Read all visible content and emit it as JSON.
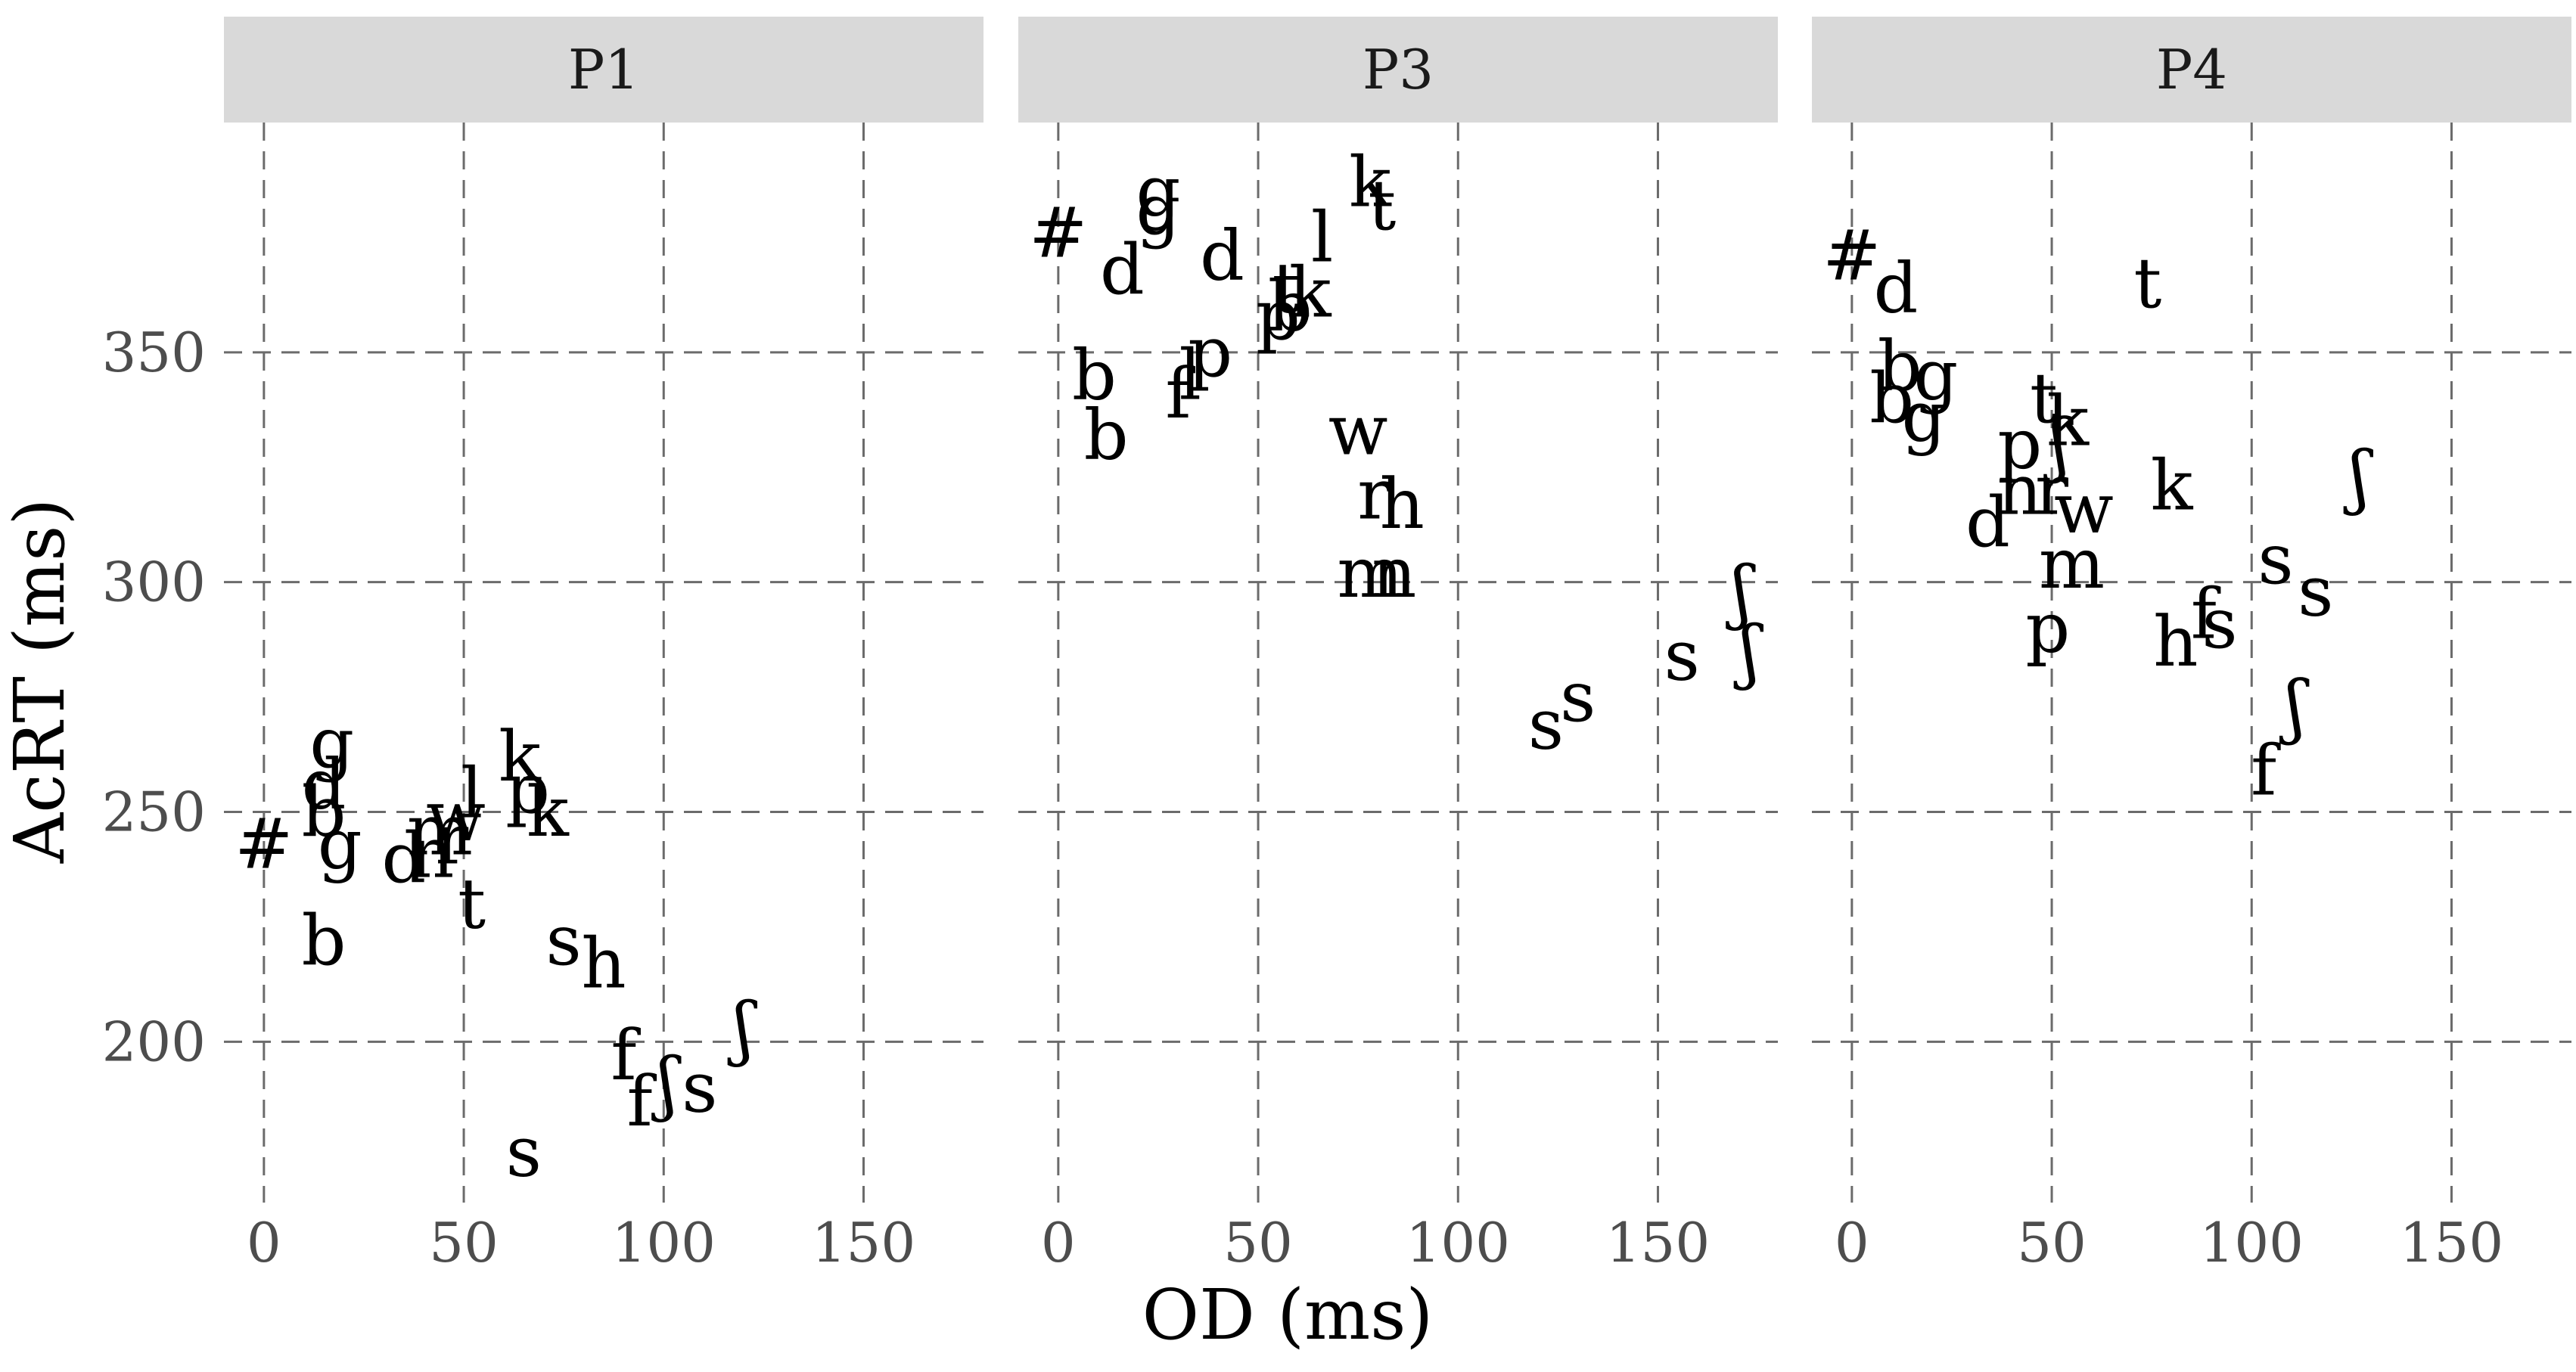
{
  "chart_data": {
    "type": "scatter",
    "xlabel": "OD (ms)",
    "ylabel": "AcRT (ms)",
    "xlim": [
      -10,
      180
    ],
    "ylim": [
      165,
      400
    ],
    "xticks": [
      0,
      50,
      100,
      150
    ],
    "yticks": [
      200,
      250,
      300,
      350
    ],
    "grid": true,
    "point_marker": "phoneme text label",
    "panels": [
      {
        "name": "P1",
        "points": [
          {
            "label": "#",
            "x": 0,
            "y": 243
          },
          {
            "label": "g",
            "x": 17,
            "y": 265
          },
          {
            "label": "d",
            "x": 15,
            "y": 256
          },
          {
            "label": "b",
            "x": 15,
            "y": 250
          },
          {
            "label": "g",
            "x": 19,
            "y": 243
          },
          {
            "label": "b",
            "x": 15,
            "y": 222
          },
          {
            "label": "d",
            "x": 35,
            "y": 240
          },
          {
            "label": "n",
            "x": 42,
            "y": 241
          },
          {
            "label": "m",
            "x": 44,
            "y": 246
          },
          {
            "label": "r",
            "x": 47,
            "y": 244
          },
          {
            "label": "w",
            "x": 48,
            "y": 249
          },
          {
            "label": "l",
            "x": 52,
            "y": 254
          },
          {
            "label": "t",
            "x": 52,
            "y": 230
          },
          {
            "label": "k",
            "x": 64,
            "y": 262
          },
          {
            "label": "p",
            "x": 66,
            "y": 255
          },
          {
            "label": "k",
            "x": 71,
            "y": 250
          },
          {
            "label": "s",
            "x": 75,
            "y": 222
          },
          {
            "label": "h",
            "x": 85,
            "y": 217
          },
          {
            "label": "f",
            "x": 90,
            "y": 197
          },
          {
            "label": "f",
            "x": 94,
            "y": 187
          },
          {
            "label": "ʃ",
            "x": 101,
            "y": 191
          },
          {
            "label": "s",
            "x": 109,
            "y": 190
          },
          {
            "label": "ʃ",
            "x": 120,
            "y": 203
          },
          {
            "label": "s",
            "x": 65,
            "y": 176
          }
        ]
      },
      {
        "name": "P3",
        "points": [
          {
            "label": "#",
            "x": 0,
            "y": 376
          },
          {
            "label": "g",
            "x": 25,
            "y": 385
          },
          {
            "label": "g",
            "x": 25,
            "y": 381
          },
          {
            "label": "d",
            "x": 16,
            "y": 368
          },
          {
            "label": "d",
            "x": 41,
            "y": 371
          },
          {
            "label": "l",
            "x": 66,
            "y": 375
          },
          {
            "label": "k",
            "x": 78,
            "y": 387
          },
          {
            "label": "t",
            "x": 81,
            "y": 382
          },
          {
            "label": "t",
            "x": 57,
            "y": 364
          },
          {
            "label": "p",
            "x": 55,
            "y": 358
          },
          {
            "label": "b",
            "x": 58,
            "y": 360
          },
          {
            "label": "k",
            "x": 63,
            "y": 363
          },
          {
            "label": "b",
            "x": 9,
            "y": 345
          },
          {
            "label": "p",
            "x": 38,
            "y": 350
          },
          {
            "label": "f",
            "x": 30,
            "y": 341
          },
          {
            "label": "l",
            "x": 33,
            "y": 345
          },
          {
            "label": "b",
            "x": 12,
            "y": 332
          },
          {
            "label": "w",
            "x": 75,
            "y": 333
          },
          {
            "label": "r",
            "x": 79,
            "y": 319
          },
          {
            "label": "h",
            "x": 86,
            "y": 317
          },
          {
            "label": "m",
            "x": 78,
            "y": 302
          },
          {
            "label": "n",
            "x": 84,
            "y": 302
          },
          {
            "label": "ʃ",
            "x": 171,
            "y": 298
          },
          {
            "label": "ʃ",
            "x": 173,
            "y": 285
          },
          {
            "label": "s",
            "x": 156,
            "y": 284
          },
          {
            "label": "s",
            "x": 130,
            "y": 275
          },
          {
            "label": "s",
            "x": 122,
            "y": 269
          }
        ]
      },
      {
        "name": "P4",
        "points": [
          {
            "label": "#",
            "x": 0,
            "y": 371
          },
          {
            "label": "d",
            "x": 11,
            "y": 364
          },
          {
            "label": "t",
            "x": 74,
            "y": 365
          },
          {
            "label": "b",
            "x": 12,
            "y": 347
          },
          {
            "label": "g",
            "x": 21,
            "y": 345
          },
          {
            "label": "b",
            "x": 10,
            "y": 340
          },
          {
            "label": "g",
            "x": 18,
            "y": 336
          },
          {
            "label": "t",
            "x": 48,
            "y": 340
          },
          {
            "label": "k",
            "x": 54,
            "y": 335
          },
          {
            "label": "p",
            "x": 42,
            "y": 330
          },
          {
            "label": "ʃ",
            "x": 52,
            "y": 330
          },
          {
            "label": "n",
            "x": 42,
            "y": 320
          },
          {
            "label": "r",
            "x": 50,
            "y": 320
          },
          {
            "label": "w",
            "x": 58,
            "y": 316
          },
          {
            "label": "k",
            "x": 80,
            "y": 321
          },
          {
            "label": "ʃ",
            "x": 127,
            "y": 323
          },
          {
            "label": "d",
            "x": 34,
            "y": 313
          },
          {
            "label": "m",
            "x": 55,
            "y": 304
          },
          {
            "label": "s",
            "x": 106,
            "y": 305
          },
          {
            "label": "s",
            "x": 116,
            "y": 298
          },
          {
            "label": "p",
            "x": 49,
            "y": 290
          },
          {
            "label": "f",
            "x": 88,
            "y": 293
          },
          {
            "label": "s",
            "x": 92,
            "y": 291
          },
          {
            "label": "h",
            "x": 81,
            "y": 287
          },
          {
            "label": "ʃ",
            "x": 111,
            "y": 273
          },
          {
            "label": "f",
            "x": 103,
            "y": 259
          }
        ]
      }
    ]
  }
}
